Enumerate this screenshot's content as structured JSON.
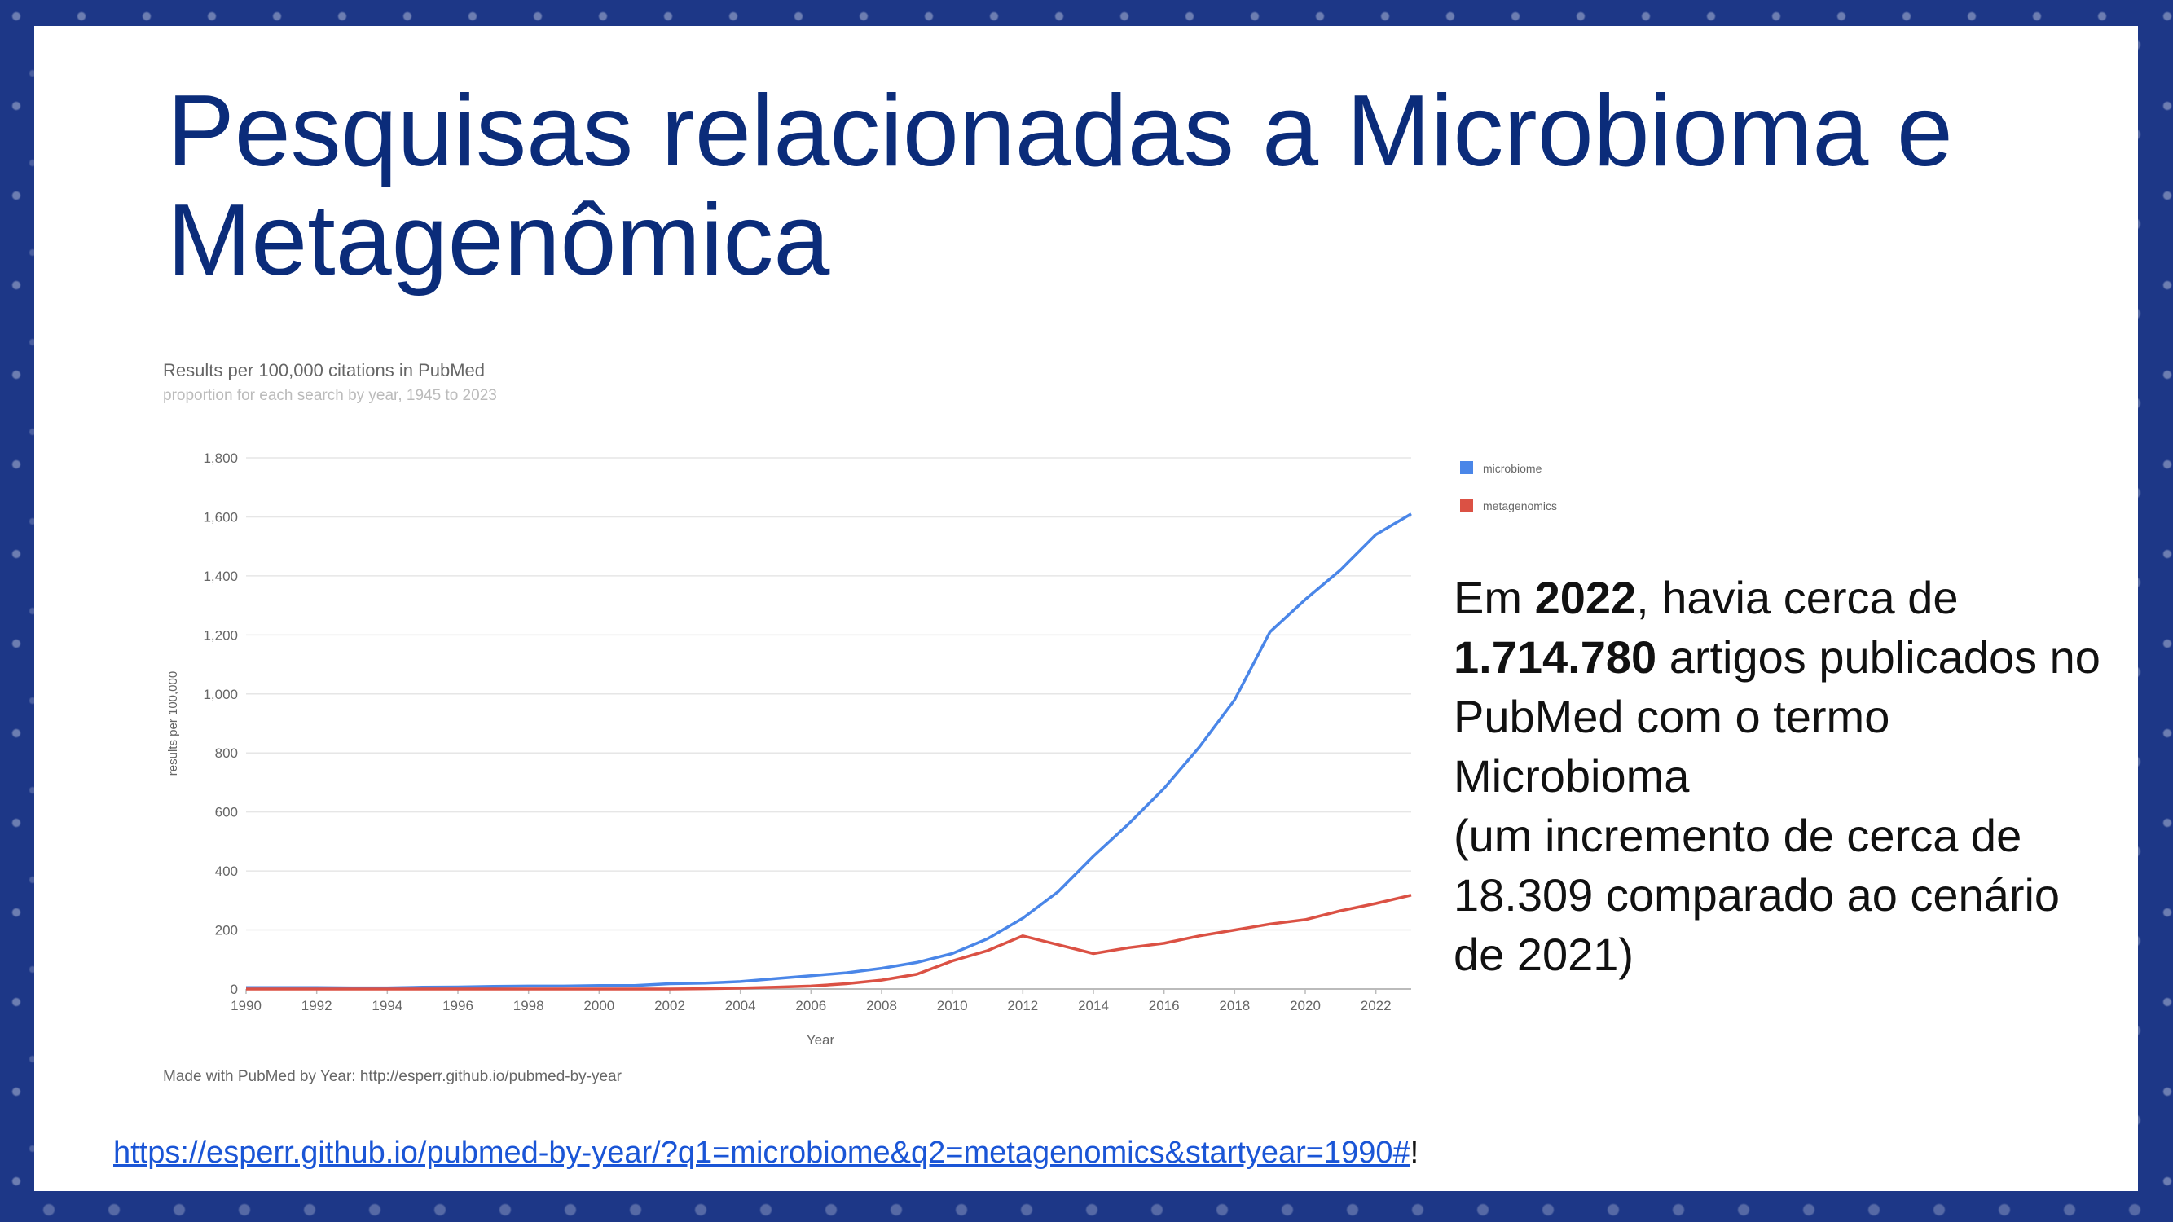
{
  "slide": {
    "title": "Pesquisas relacionadas a Microbioma e Metagenômica",
    "side_text": {
      "p1_pre": "Em ",
      "p1_year": "2022",
      "p1_mid": ", havia cerca de ",
      "p1_count": "1.714.780",
      "p1_post": " artigos publicados no PubMed com o termo Microbioma",
      "p2": "(um incremento de cerca de 18.309 comparado ao cenário de 2021)"
    },
    "url_text": "https://esperr.github.io/pubmed-by-year/?q1=microbiome&q2=metagenomics&startyear=1990#",
    "url_suffix": "!"
  },
  "chart_data": {
    "type": "line",
    "title": "Results per 100,000 citations in PubMed",
    "subtitle": "proportion for each search by year, 1945 to 2023",
    "xlabel": "Year",
    "ylabel": "results per 100,000",
    "footer": "Made with PubMed by Year: http://esperr.github.io/pubmed-by-year",
    "xlim": [
      1990,
      2023
    ],
    "ylim": [
      0,
      1800
    ],
    "x_ticks": [
      1990,
      1992,
      1994,
      1996,
      1998,
      2000,
      2002,
      2004,
      2006,
      2008,
      2010,
      2012,
      2014,
      2016,
      2018,
      2020,
      2022
    ],
    "y_ticks": [
      0,
      200,
      400,
      600,
      800,
      1000,
      1200,
      1400,
      1600,
      1800
    ],
    "y_tick_labels": [
      "0",
      "200",
      "400",
      "600",
      "800",
      "1,000",
      "1,200",
      "1,400",
      "1,600",
      "1,800"
    ],
    "grid": true,
    "legend_position": "top-right",
    "x": [
      1990,
      1991,
      1992,
      1993,
      1994,
      1995,
      1996,
      1997,
      1998,
      1999,
      2000,
      2001,
      2002,
      2003,
      2004,
      2005,
      2006,
      2007,
      2008,
      2009,
      2010,
      2011,
      2012,
      2013,
      2014,
      2015,
      2016,
      2017,
      2018,
      2019,
      2020,
      2021,
      2022,
      2023
    ],
    "series": [
      {
        "name": "microbiome",
        "color": "#4a86e8",
        "values": [
          5,
          5,
          5,
          4,
          4,
          6,
          7,
          9,
          10,
          10,
          12,
          12,
          18,
          20,
          25,
          35,
          45,
          55,
          70,
          90,
          120,
          170,
          240,
          330,
          450,
          560,
          680,
          820,
          980,
          1210,
          1320,
          1420,
          1540,
          1610
        ]
      },
      {
        "name": "metagenomics",
        "color": "#db5144",
        "values": [
          0,
          0,
          0,
          0,
          0,
          0,
          0,
          0,
          0,
          0,
          0,
          0,
          0,
          1,
          3,
          6,
          10,
          18,
          30,
          50,
          95,
          130,
          180,
          150,
          120,
          140,
          155,
          180,
          200,
          220,
          235,
          265,
          290,
          318
        ]
      }
    ]
  }
}
